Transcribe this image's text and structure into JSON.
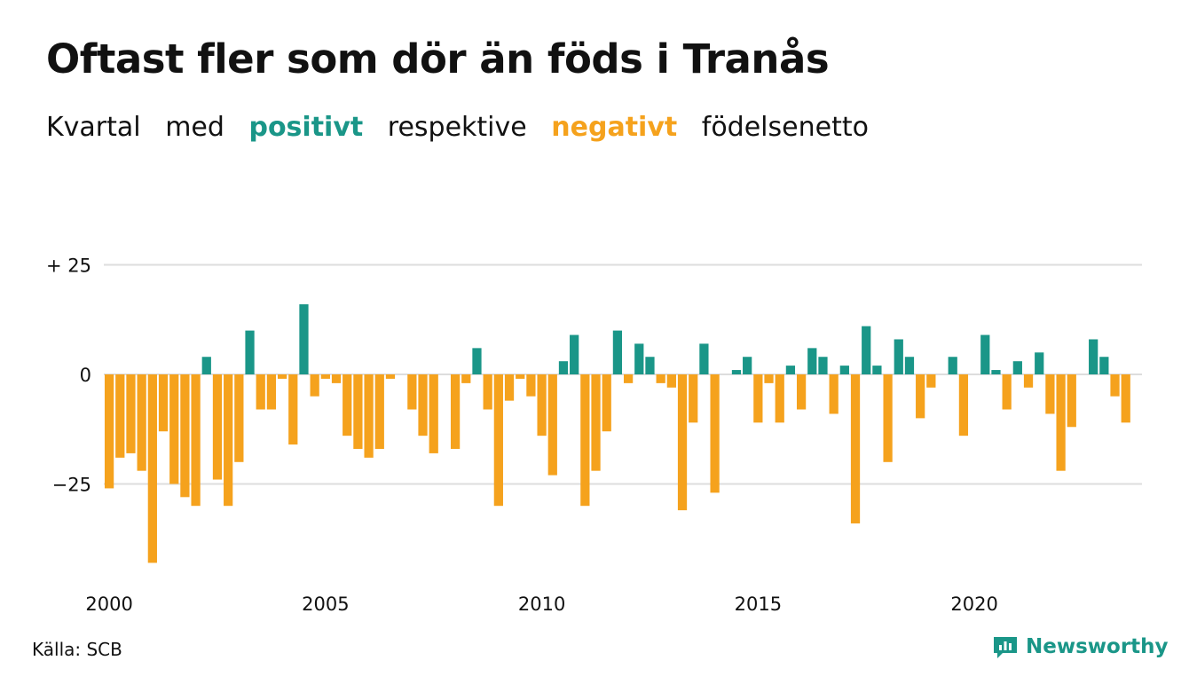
{
  "header": {
    "title": "Oftast fler som dör än föds i Tranås",
    "subtitle_parts": [
      "Kvartal",
      "med",
      "positivt",
      "respektive",
      "negativt",
      "födelsenetto"
    ]
  },
  "footer": {
    "source": "Källa: SCB",
    "brand": "Newsworthy"
  },
  "colors": {
    "positive": "#1a9688",
    "negative": "#f5a21d",
    "grid": "#dddddd",
    "text": "#111111"
  },
  "chart_data": {
    "type": "bar",
    "xlabel": "",
    "ylabel": "",
    "ylim": [
      -43,
      25
    ],
    "yticks": [
      {
        "value": 25,
        "label": "+ 25"
      },
      {
        "value": 0,
        "label": "0"
      },
      {
        "value": -25,
        "label": "−25"
      }
    ],
    "xticks": [
      "2000",
      "2005",
      "2010",
      "2015",
      "2020"
    ],
    "grid": true,
    "categories": [
      "2000 K1",
      "2000 K2",
      "2000 K3",
      "2000 K4",
      "2001 K1",
      "2001 K2",
      "2001 K3",
      "2001 K4",
      "2002 K1",
      "2002 K2",
      "2002 K3",
      "2002 K4",
      "2003 K1",
      "2003 K2",
      "2003 K3",
      "2003 K4",
      "2004 K1",
      "2004 K2",
      "2004 K3",
      "2004 K4",
      "2005 K1",
      "2005 K2",
      "2005 K3",
      "2005 K4",
      "2006 K1",
      "2006 K2",
      "2006 K3",
      "2006 K4",
      "2007 K1",
      "2007 K2",
      "2007 K3",
      "2007 K4",
      "2008 K1",
      "2008 K2",
      "2008 K3",
      "2008 K4",
      "2009 K1",
      "2009 K2",
      "2009 K3",
      "2009 K4",
      "2010 K1",
      "2010 K2",
      "2010 K3",
      "2010 K4",
      "2011 K1",
      "2011 K2",
      "2011 K3",
      "2011 K4",
      "2012 K1",
      "2012 K2",
      "2012 K3",
      "2012 K4",
      "2013 K1",
      "2013 K2",
      "2013 K3",
      "2013 K4",
      "2014 K1",
      "2014 K2",
      "2014 K3",
      "2014 K4",
      "2015 K1",
      "2015 K2",
      "2015 K3",
      "2015 K4",
      "2016 K1",
      "2016 K2",
      "2016 K3",
      "2016 K4",
      "2017 K1",
      "2017 K2",
      "2017 K3",
      "2017 K4",
      "2018 K1",
      "2018 K2",
      "2018 K3",
      "2018 K4",
      "2019 K1",
      "2019 K2",
      "2019 K3",
      "2019 K4",
      "2020 K1",
      "2020 K2",
      "2020 K3",
      "2020 K4",
      "2021 K1",
      "2021 K2",
      "2021 K3",
      "2021 K4",
      "2022 K1",
      "2022 K2",
      "2022 K3",
      "2022 K4",
      "2023 K1",
      "2023 K2",
      "2023 K3",
      "2023 K4"
    ],
    "values": [
      -26,
      -19,
      -18,
      -22,
      -43,
      -13,
      -25,
      -28,
      -30,
      4,
      -24,
      -30,
      -20,
      10,
      -8,
      -8,
      -1,
      -16,
      16,
      -5,
      -1,
      -2,
      -14,
      -17,
      -19,
      -17,
      -1,
      0,
      -8,
      -14,
      -18,
      0,
      -17,
      -2,
      6,
      -8,
      -30,
      -6,
      -1,
      -5,
      -14,
      -23,
      3,
      9,
      -30,
      -22,
      -13,
      10,
      -2,
      7,
      4,
      -2,
      -3,
      -31,
      -11,
      7,
      -27,
      0,
      1,
      4,
      -11,
      -2,
      -11,
      2,
      -8,
      6,
      4,
      -9,
      2,
      -34,
      11,
      2,
      -20,
      8,
      4,
      -10,
      -3,
      0,
      4,
      -14,
      0,
      9,
      1,
      -8,
      3,
      -3,
      5,
      -9,
      -22,
      -12,
      0,
      8,
      4,
      -5,
      -11,
      0
    ]
  }
}
